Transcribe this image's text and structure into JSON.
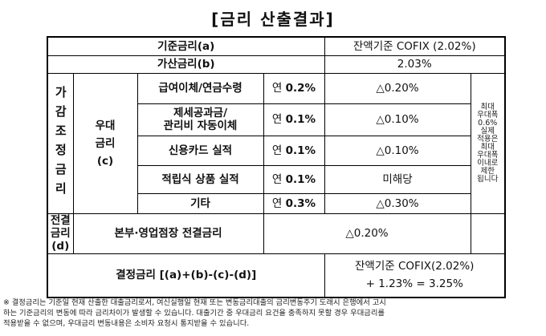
{
  "title": "[금리 산출결과]",
  "base": {
    "label": "기준금리(a)",
    "value": "잔액기준 COFIX (2.02%)"
  },
  "spread": {
    "label": "가산금리(b)",
    "value": "2.03%"
  },
  "adjust": {
    "label": "가감조정금리",
    "preferential": {
      "label": [
        "우대",
        "금리",
        "(c)"
      ],
      "items": [
        {
          "name": [
            "급여이체/연금수령"
          ],
          "unit": "연",
          "rate": "0.2%",
          "value": "△0.20%"
        },
        {
          "name": [
            "제세공과금/",
            "관리비 자동이체"
          ],
          "unit": "연",
          "rate": "0.1%",
          "value": "△0.10%"
        },
        {
          "name": [
            "신용카드 실적"
          ],
          "unit": "연",
          "rate": "0.1%",
          "value": "△0.10%"
        },
        {
          "name": [
            "적립식 상품 실적"
          ],
          "unit": "연",
          "rate": "0.1%",
          "value": "미해당"
        },
        {
          "name": [
            "기타"
          ],
          "unit": "연",
          "rate": "0.3%",
          "value": "△0.30%"
        }
      ],
      "note": [
        "최대",
        "우대폭",
        "0.6%",
        "실제",
        "적용은",
        "최대",
        "우대폭",
        "이내로",
        "제한",
        "됩니다"
      ]
    },
    "discretionary": {
      "label": [
        "전결금리",
        "(d)"
      ],
      "name": "본부·영업점장 전결금리",
      "value": "△0.20%"
    }
  },
  "final": {
    "label": "결정금리 [(a)+(b)-(c)-(d)]",
    "value": [
      "잔액기준 COFIX(2.02%)",
      "+ 1.23% = 3.25%"
    ]
  },
  "footnote": [
    "※ 결정금리는 기준일 현재 산출한 대출금리로서, 여신실행일 현재 또는 변동금리대출의 금리변동주기 도래시 은행에서 고시",
    "하는 기준금리의 변동에 따라 금리차이가 발생할 수 있습니다. 대출기간 중 우대금리 요건을 충족하지 못할 경우 우대금리를",
    "적용받을 수 없으며, 우대금리 변동내용은 소비자 요청시 통지받을 수 있습니다."
  ]
}
